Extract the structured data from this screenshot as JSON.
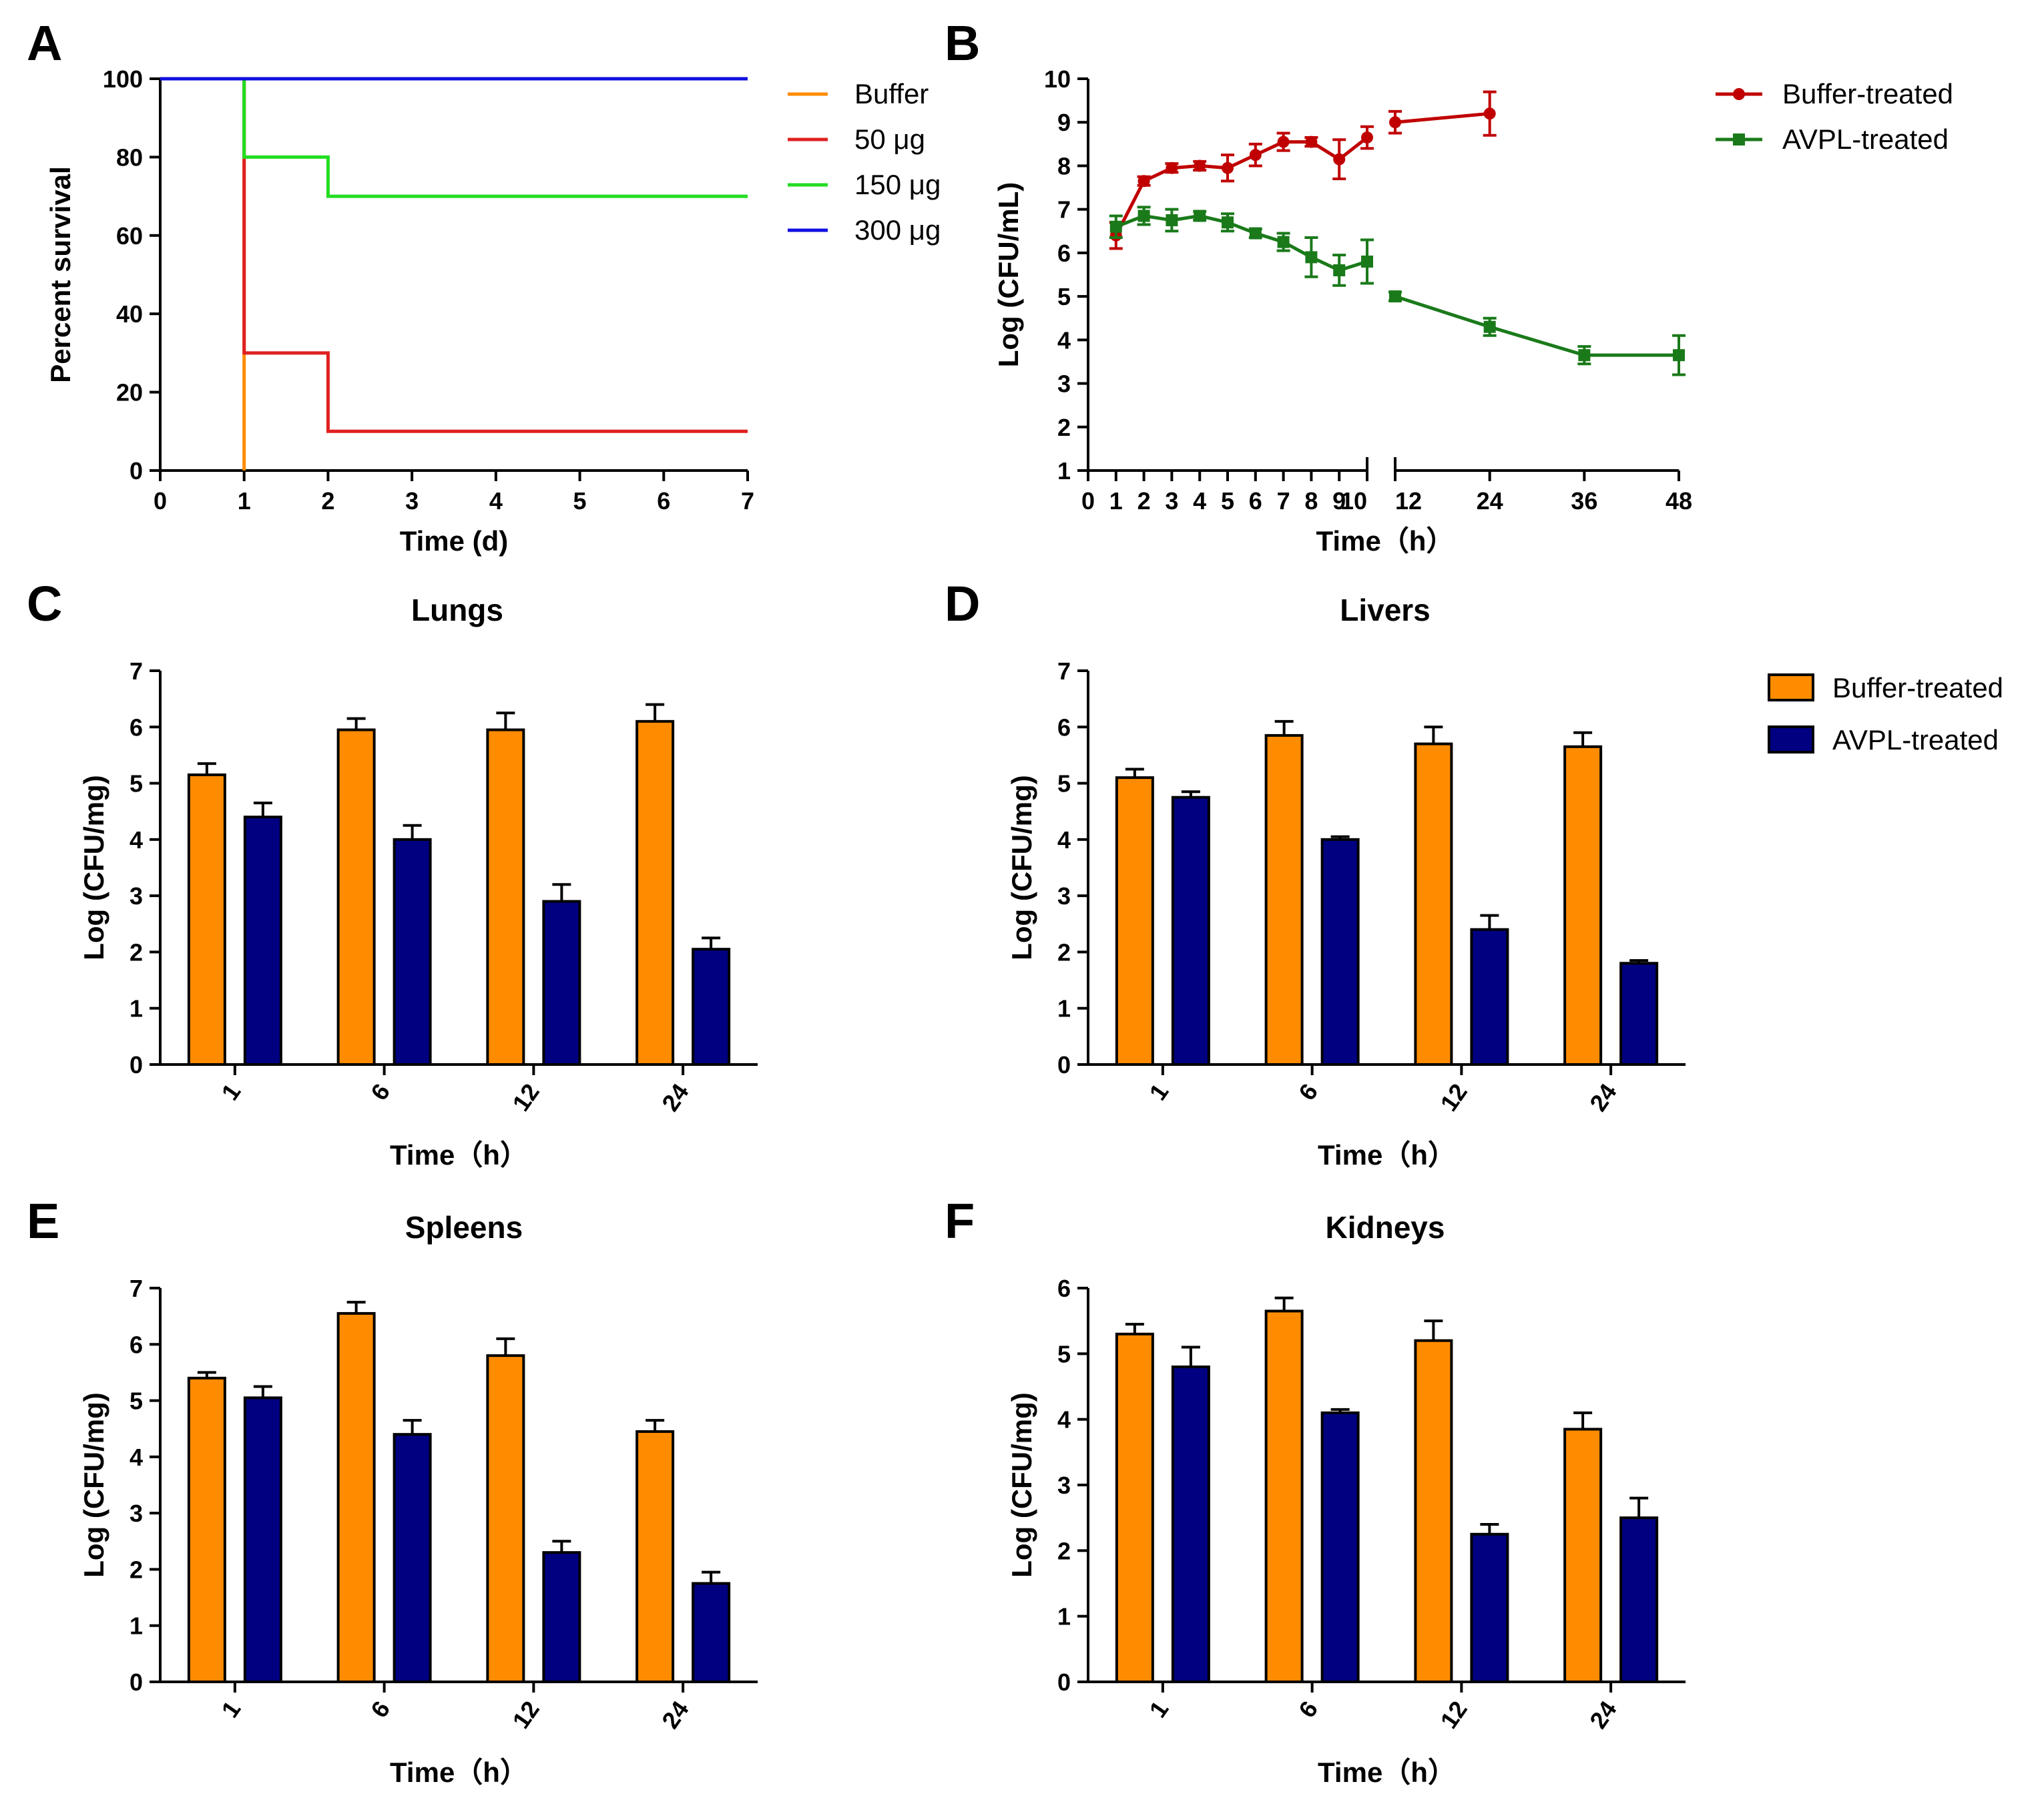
{
  "colors": {
    "buffer": "#ff8c00",
    "avpl": "#000080",
    "buffer_line_b": "#c00000",
    "avpl_line_b": "#1a7a1a",
    "survival": [
      "#ff8c00",
      "#e02020",
      "#22dd22",
      "#1010e0"
    ]
  },
  "chart_data": [
    {
      "panel": "A",
      "type": "line",
      "title": "",
      "xlabel": "Time (d)",
      "ylabel": "Percent survival",
      "xlim": [
        0,
        7
      ],
      "ylim": [
        0,
        100
      ],
      "xticks": [
        0,
        1,
        2,
        3,
        4,
        5,
        6,
        7
      ],
      "yticks": [
        0,
        20,
        40,
        60,
        80,
        100
      ],
      "series": [
        {
          "name": "Buffer",
          "x": [
            0,
            1,
            1
          ],
          "y": [
            100,
            100,
            0
          ]
        },
        {
          "name": "50 μg",
          "x": [
            0,
            1,
            1,
            2,
            2,
            7
          ],
          "y": [
            100,
            100,
            30,
            30,
            10,
            10
          ]
        },
        {
          "name": "150 μg",
          "x": [
            0,
            1,
            1,
            2,
            2,
            7
          ],
          "y": [
            100,
            100,
            80,
            80,
            70,
            70
          ]
        },
        {
          "name": "300 μg",
          "x": [
            0,
            7
          ],
          "y": [
            100,
            100
          ]
        }
      ]
    },
    {
      "panel": "B",
      "type": "line",
      "title": "",
      "xlabel": "Time（h）",
      "ylabel": "Log (CFU/mL)",
      "ylim": [
        1,
        10
      ],
      "yticks": [
        1,
        2,
        3,
        4,
        5,
        6,
        7,
        8,
        9,
        10
      ],
      "xticks": [
        0,
        1,
        2,
        3,
        4,
        5,
        6,
        7,
        8,
        9,
        10,
        12,
        24,
        36,
        48
      ],
      "x_break": [
        10,
        12
      ],
      "series": [
        {
          "name": "Buffer-treated",
          "x": [
            1,
            2,
            3,
            4,
            5,
            6,
            7,
            8,
            9,
            10,
            12,
            24
          ],
          "y": [
            6.4,
            7.65,
            7.95,
            8.0,
            7.95,
            8.25,
            8.55,
            8.55,
            8.15,
            8.65,
            9.0,
            9.2
          ],
          "err": [
            0.3,
            0.1,
            0.1,
            0.1,
            0.3,
            0.25,
            0.2,
            0.1,
            0.45,
            0.25,
            0.25,
            0.5
          ]
        },
        {
          "name": "AVPL-treated",
          "x": [
            1,
            2,
            3,
            4,
            5,
            6,
            7,
            8,
            9,
            10,
            12,
            24,
            36,
            48
          ],
          "y": [
            6.6,
            6.85,
            6.75,
            6.85,
            6.7,
            6.45,
            6.25,
            5.9,
            5.6,
            5.8,
            5.0,
            4.3,
            3.65,
            3.65
          ],
          "err": [
            0.25,
            0.2,
            0.25,
            0.1,
            0.2,
            0.1,
            0.2,
            0.45,
            0.35,
            0.5,
            0.1,
            0.2,
            0.2,
            0.45
          ]
        }
      ]
    },
    {
      "panel": "C",
      "type": "bar",
      "title": "Lungs",
      "xlabel": "Time（h）",
      "ylabel": "Log (CFU/mg)",
      "ylim": [
        0,
        7
      ],
      "yticks": [
        0,
        1,
        2,
        3,
        4,
        5,
        6,
        7
      ],
      "categories": [
        "1",
        "6",
        "12",
        "24"
      ],
      "series": [
        {
          "name": "Buffer-treated",
          "values": [
            5.15,
            5.95,
            5.95,
            6.1
          ],
          "err": [
            0.2,
            0.2,
            0.3,
            0.3
          ]
        },
        {
          "name": "AVPL-treated",
          "values": [
            4.4,
            4.0,
            2.9,
            2.05
          ],
          "err": [
            0.25,
            0.25,
            0.3,
            0.2
          ]
        }
      ]
    },
    {
      "panel": "D",
      "type": "bar",
      "title": "Livers",
      "xlabel": "Time（h）",
      "ylabel": "Log (CFU/mg)",
      "ylim": [
        0,
        7
      ],
      "yticks": [
        0,
        1,
        2,
        3,
        4,
        5,
        6,
        7
      ],
      "categories": [
        "1",
        "6",
        "12",
        "24"
      ],
      "series": [
        {
          "name": "Buffer-treated",
          "values": [
            5.1,
            5.85,
            5.7,
            5.65
          ],
          "err": [
            0.15,
            0.25,
            0.3,
            0.25
          ]
        },
        {
          "name": "AVPL-treated",
          "values": [
            4.75,
            4.0,
            2.4,
            1.8
          ],
          "err": [
            0.1,
            0.05,
            0.25,
            0.05
          ]
        }
      ]
    },
    {
      "panel": "E",
      "type": "bar",
      "title": "Spleens",
      "xlabel": "Time（h）",
      "ylabel": "Log (CFU/mg)",
      "ylim": [
        0,
        7
      ],
      "yticks": [
        0,
        1,
        2,
        3,
        4,
        5,
        6,
        7
      ],
      "categories": [
        "1",
        "6",
        "12",
        "24"
      ],
      "series": [
        {
          "name": "Buffer-treated",
          "values": [
            5.4,
            6.55,
            5.8,
            4.45
          ],
          "err": [
            0.1,
            0.2,
            0.3,
            0.2
          ]
        },
        {
          "name": "AVPL-treated",
          "values": [
            5.05,
            4.4,
            2.3,
            1.75
          ],
          "err": [
            0.2,
            0.25,
            0.2,
            0.2
          ]
        }
      ]
    },
    {
      "panel": "F",
      "type": "bar",
      "title": "Kidneys",
      "xlabel": "Time（h）",
      "ylabel": "Log (CFU/mg)",
      "ylim": [
        0,
        6
      ],
      "yticks": [
        0,
        1,
        2,
        3,
        4,
        5,
        6
      ],
      "categories": [
        "1",
        "6",
        "12",
        "24"
      ],
      "series": [
        {
          "name": "Buffer-treated",
          "values": [
            5.3,
            5.65,
            5.2,
            3.85
          ],
          "err": [
            0.15,
            0.2,
            0.3,
            0.25
          ]
        },
        {
          "name": "AVPL-treated",
          "values": [
            4.8,
            4.1,
            2.25,
            2.5
          ],
          "err": [
            0.3,
            0.05,
            0.15,
            0.3
          ]
        }
      ]
    }
  ],
  "legend_bars": [
    "Buffer-treated",
    "AVPL-treated"
  ]
}
